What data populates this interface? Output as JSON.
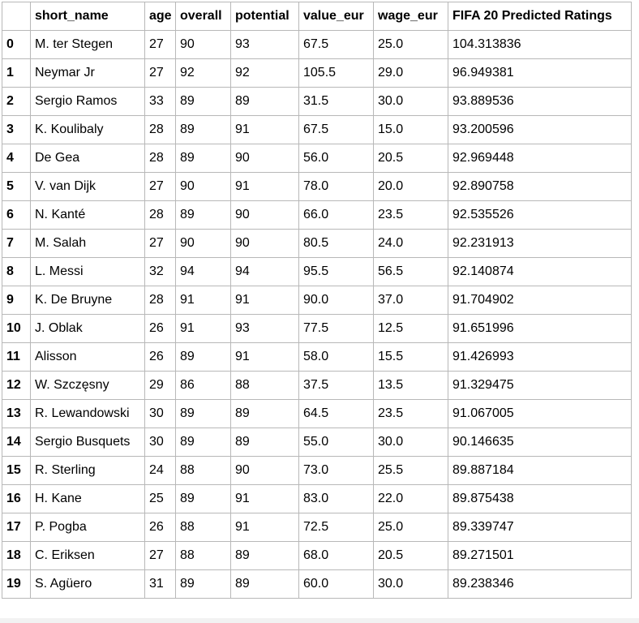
{
  "table": {
    "columns": [
      "",
      "short_name",
      "age",
      "overall",
      "potential",
      "value_eur",
      "wage_eur",
      "FIFA 20 Predicted Ratings"
    ],
    "rows": [
      {
        "index": "0",
        "cells": [
          "M. ter Stegen",
          "27",
          "90",
          "93",
          "67.5",
          "25.0",
          "104.313836"
        ]
      },
      {
        "index": "1",
        "cells": [
          "Neymar Jr",
          "27",
          "92",
          "92",
          "105.5",
          "29.0",
          "96.949381"
        ]
      },
      {
        "index": "2",
        "cells": [
          "Sergio Ramos",
          "33",
          "89",
          "89",
          "31.5",
          "30.0",
          "93.889536"
        ]
      },
      {
        "index": "3",
        "cells": [
          "K. Koulibaly",
          "28",
          "89",
          "91",
          "67.5",
          "15.0",
          "93.200596"
        ]
      },
      {
        "index": "4",
        "cells": [
          "De Gea",
          "28",
          "89",
          "90",
          "56.0",
          "20.5",
          "92.969448"
        ]
      },
      {
        "index": "5",
        "cells": [
          "V. van Dijk",
          "27",
          "90",
          "91",
          "78.0",
          "20.0",
          "92.890758"
        ]
      },
      {
        "index": "6",
        "cells": [
          "N. Kanté",
          "28",
          "89",
          "90",
          "66.0",
          "23.5",
          "92.535526"
        ]
      },
      {
        "index": "7",
        "cells": [
          "M. Salah",
          "27",
          "90",
          "90",
          "80.5",
          "24.0",
          "92.231913"
        ]
      },
      {
        "index": "8",
        "cells": [
          "L. Messi",
          "32",
          "94",
          "94",
          "95.5",
          "56.5",
          "92.140874"
        ]
      },
      {
        "index": "9",
        "cells": [
          "K. De Bruyne",
          "28",
          "91",
          "91",
          "90.0",
          "37.0",
          "91.704902"
        ]
      },
      {
        "index": "10",
        "cells": [
          "J. Oblak",
          "26",
          "91",
          "93",
          "77.5",
          "12.5",
          "91.651996"
        ]
      },
      {
        "index": "11",
        "cells": [
          "Alisson",
          "26",
          "89",
          "91",
          "58.0",
          "15.5",
          "91.426993"
        ]
      },
      {
        "index": "12",
        "cells": [
          "W. Szczęsny",
          "29",
          "86",
          "88",
          "37.5",
          "13.5",
          "91.329475"
        ]
      },
      {
        "index": "13",
        "cells": [
          "R. Lewandowski",
          "30",
          "89",
          "89",
          "64.5",
          "23.5",
          "91.067005"
        ]
      },
      {
        "index": "14",
        "cells": [
          "Sergio Busquets",
          "30",
          "89",
          "89",
          "55.0",
          "30.0",
          "90.146635"
        ]
      },
      {
        "index": "15",
        "cells": [
          "R. Sterling",
          "24",
          "88",
          "90",
          "73.0",
          "25.5",
          "89.887184"
        ]
      },
      {
        "index": "16",
        "cells": [
          "H. Kane",
          "25",
          "89",
          "91",
          "83.0",
          "22.0",
          "89.875438"
        ]
      },
      {
        "index": "17",
        "cells": [
          "P. Pogba",
          "26",
          "88",
          "91",
          "72.5",
          "25.0",
          "89.339747"
        ]
      },
      {
        "index": "18",
        "cells": [
          "C. Eriksen",
          "27",
          "88",
          "89",
          "68.0",
          "20.5",
          "89.271501"
        ]
      },
      {
        "index": "19",
        "cells": [
          "S. Agüero",
          "31",
          "89",
          "89",
          "60.0",
          "30.0",
          "89.238346"
        ]
      }
    ]
  }
}
